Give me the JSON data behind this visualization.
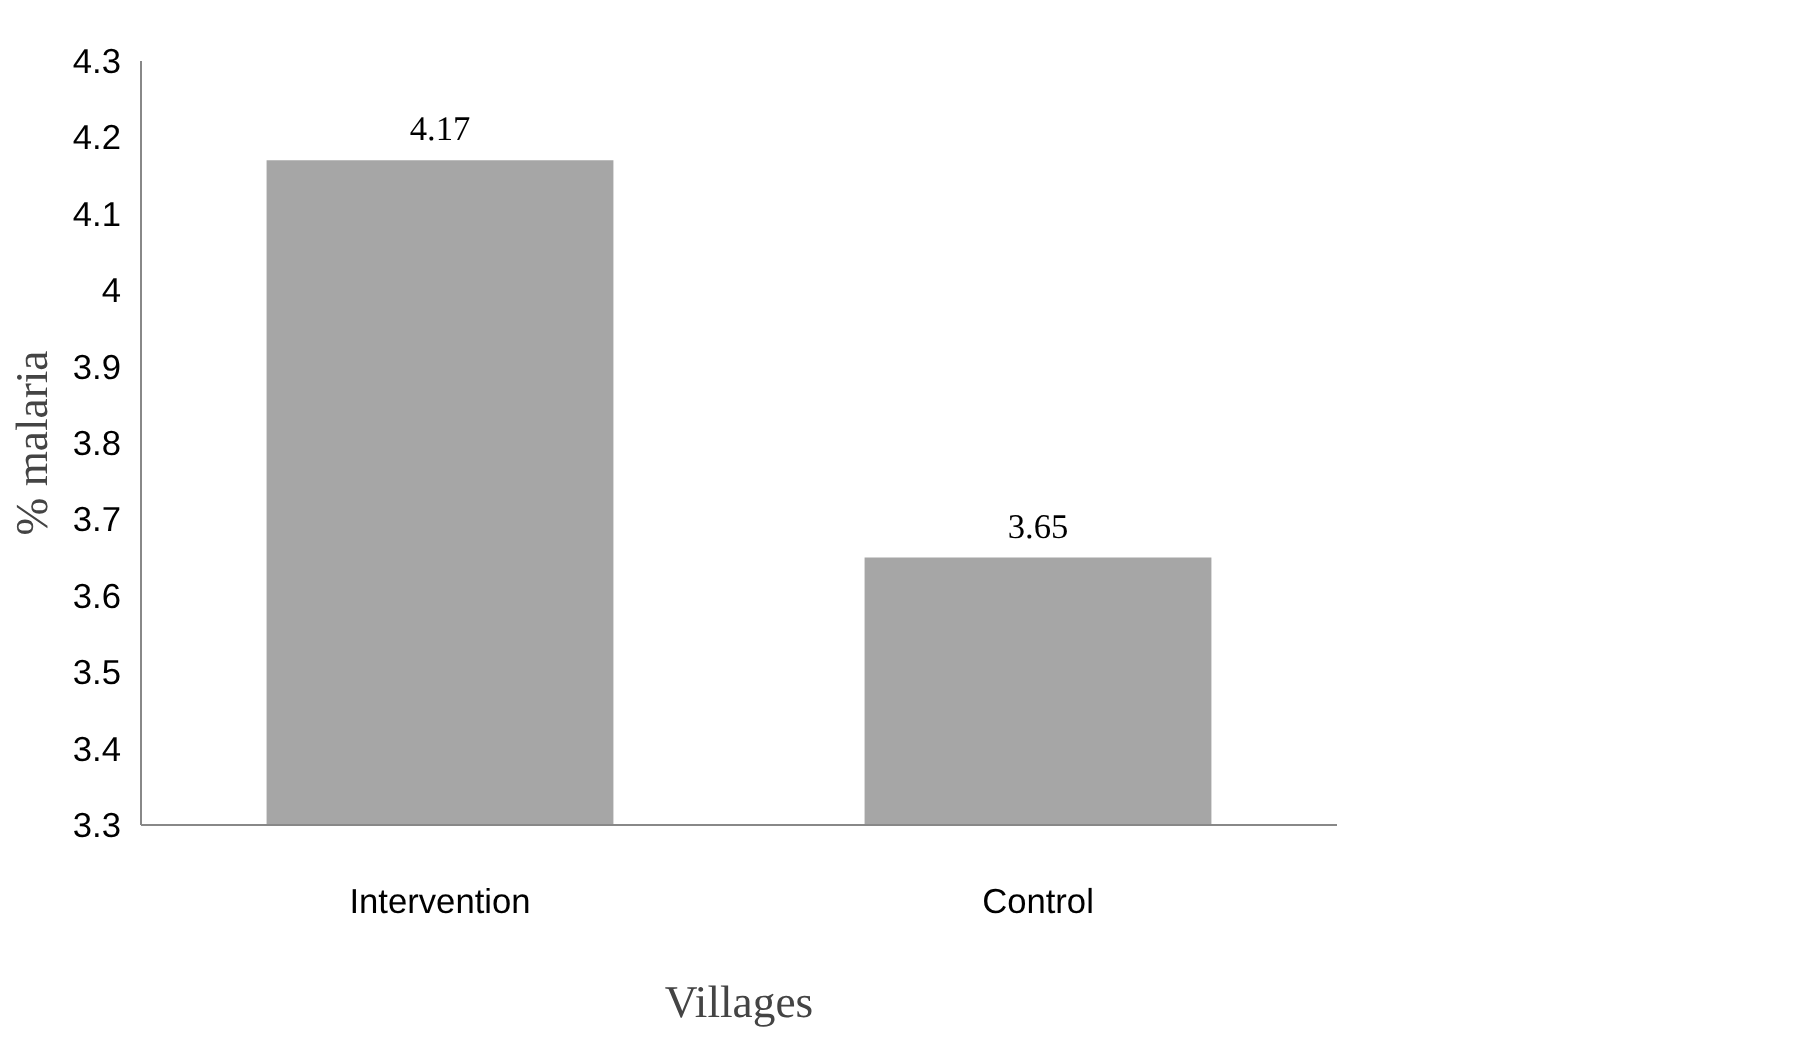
{
  "chart_data": {
    "type": "bar",
    "xlabel": "Villages",
    "ylabel": "% malaria",
    "categories": [
      "Intervention",
      "Control"
    ],
    "values": [
      4.17,
      3.65
    ],
    "color": "#a6a6a6",
    "ylim": [
      3.3,
      4.3
    ],
    "yticks": [
      3.3,
      3.4,
      3.5,
      3.6,
      3.7,
      3.8,
      3.9,
      4,
      4.1,
      4.2,
      4.3
    ],
    "grid": false,
    "data_labels": true
  }
}
